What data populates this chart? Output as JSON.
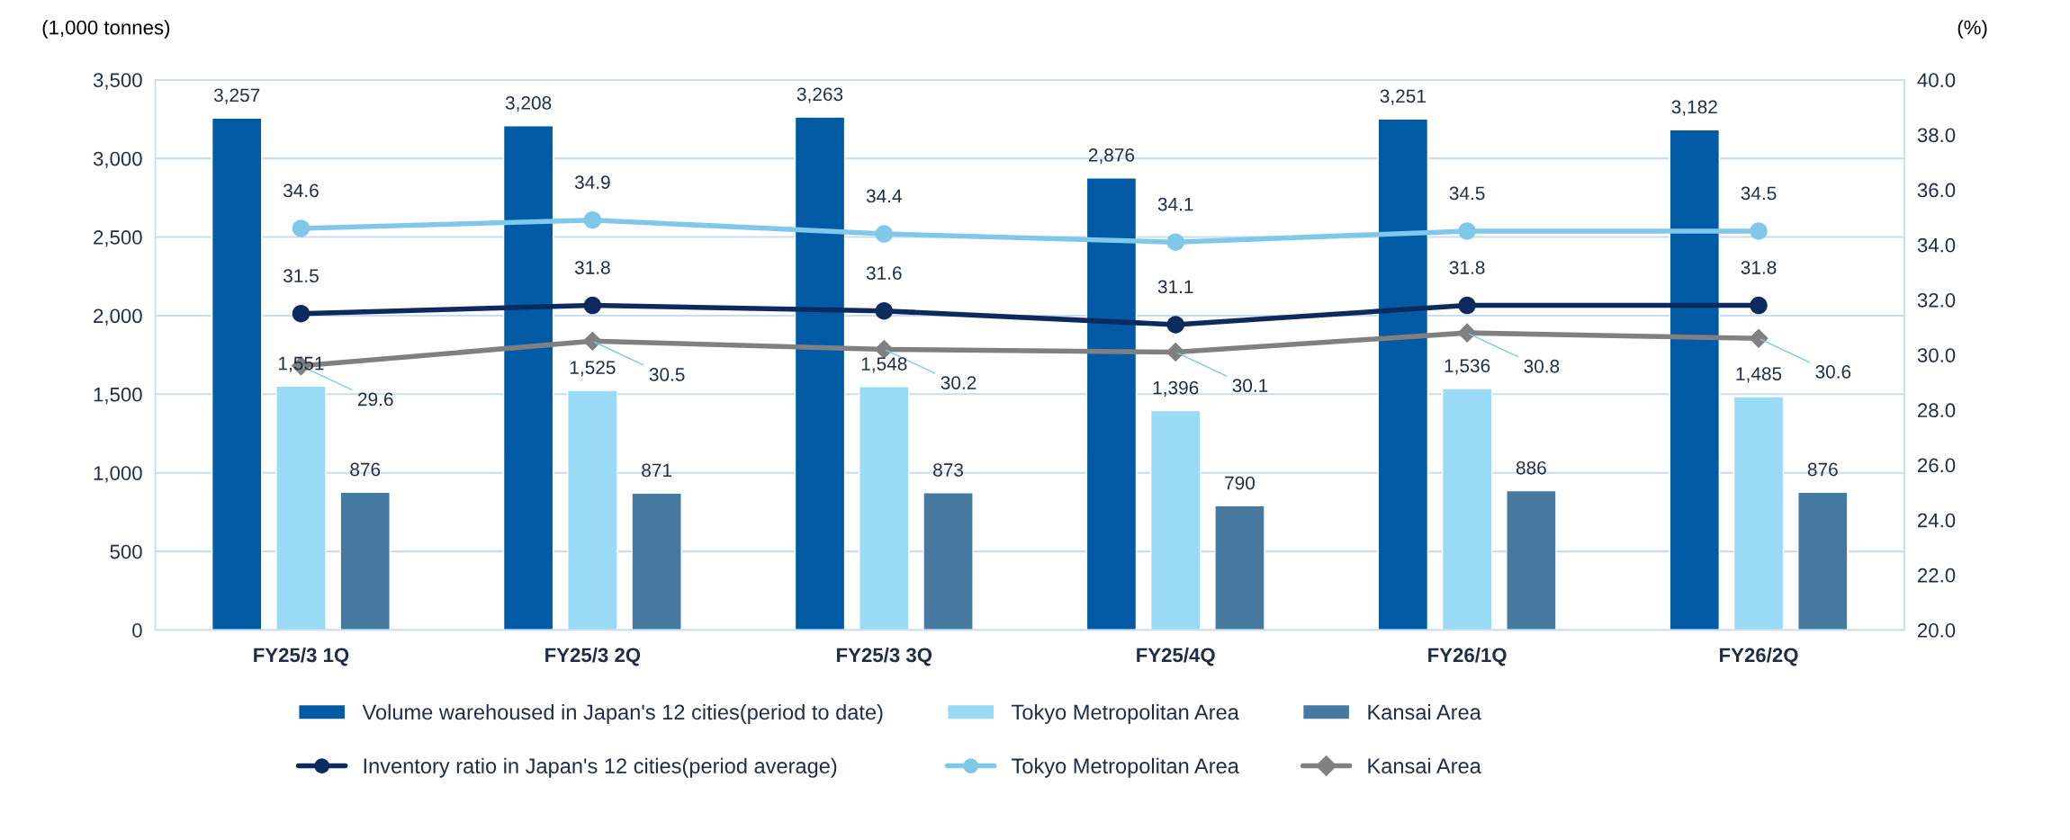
{
  "chart_data": {
    "type": "bar",
    "categories": [
      "FY25/3 1Q",
      "FY25/3 2Q",
      "FY25/3 3Q",
      "FY25/4Q",
      "FY26/1Q",
      "FY26/2Q"
    ],
    "ylabel": "(1,000 tonnes)",
    "y2label": "(%)",
    "ylim": [
      0,
      3500
    ],
    "yticks": [
      {
        "value": 0,
        "label": "0"
      },
      {
        "value": 500,
        "label": "500"
      },
      {
        "value": 1000,
        "label": "1,000"
      },
      {
        "value": 1500,
        "label": "1,500"
      },
      {
        "value": 2000,
        "label": "2,000"
      },
      {
        "value": 2500,
        "label": "2,500"
      },
      {
        "value": 3000,
        "label": "3,000"
      },
      {
        "value": 3500,
        "label": "3,500"
      }
    ],
    "y2lim": [
      20,
      40
    ],
    "y2ticks": [
      {
        "value": 20,
        "label": "20.0"
      },
      {
        "value": 22,
        "label": "22.0"
      },
      {
        "value": 24,
        "label": "24.0"
      },
      {
        "value": 26,
        "label": "26.0"
      },
      {
        "value": 28,
        "label": "28.0"
      },
      {
        "value": 30,
        "label": "30.0"
      },
      {
        "value": 32,
        "label": "32.0"
      },
      {
        "value": 34,
        "label": "34.0"
      },
      {
        "value": 36,
        "label": "36.0"
      },
      {
        "value": 38,
        "label": "38.0"
      },
      {
        "value": 40,
        "label": "40.0"
      }
    ],
    "grid": "y",
    "legend": "bottom",
    "data_labels": true,
    "series": [
      {
        "name": "Volume warehoused in Japan's 12 cities(period to date)",
        "color": "#005ba4",
        "values": [
          3257,
          3208,
          3263,
          2876,
          3251,
          3182
        ],
        "value_labels": [
          "3,257",
          "3,208",
          "3,263",
          "2,876",
          "3,251",
          "3,182"
        ]
      },
      {
        "name": "Tokyo Metropolitan Area",
        "color": "#99dbf6",
        "values": [
          1551,
          1525,
          1548,
          1396,
          1536,
          1485
        ],
        "value_labels": [
          "1,551",
          "1,525",
          "1,548",
          "1,396",
          "1,536",
          "1,485"
        ]
      },
      {
        "name": "Kansai Area",
        "color": "#46799f",
        "values": [
          876,
          871,
          873,
          790,
          886,
          876
        ],
        "value_labels": [
          "876",
          "871",
          "873",
          "790",
          "886",
          "876"
        ]
      },
      {
        "name": "Inventory ratio in Japan's 12 cities(period average)",
        "type": "line",
        "axis": "y2",
        "marker": "circle",
        "color": "#0d2a5f",
        "values": [
          31.5,
          31.8,
          31.6,
          31.1,
          31.8,
          31.8
        ]
      },
      {
        "name": "Tokyo Metropolitan Area",
        "type": "line",
        "axis": "y2",
        "marker": "circle",
        "color": "#7fc8ea",
        "values": [
          34.6,
          34.9,
          34.4,
          34.1,
          34.5,
          34.5
        ]
      },
      {
        "name": "Kansai Area",
        "type": "line",
        "axis": "y2",
        "marker": "diamond",
        "color": "#808080",
        "values": [
          29.6,
          30.5,
          30.2,
          30.1,
          30.8,
          30.6
        ]
      }
    ]
  }
}
